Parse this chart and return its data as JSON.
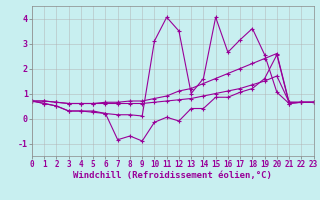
{
  "xlabel": "Windchill (Refroidissement éolien,°C)",
  "background_color": "#c8eff0",
  "line_color": "#990099",
  "xlim": [
    0,
    23
  ],
  "ylim": [
    -1.5,
    4.5
  ],
  "yticks": [
    -1,
    0,
    1,
    2,
    3,
    4
  ],
  "xticks": [
    0,
    1,
    2,
    3,
    4,
    5,
    6,
    7,
    8,
    9,
    10,
    11,
    12,
    13,
    14,
    15,
    16,
    17,
    18,
    19,
    20,
    21,
    22,
    23
  ],
  "lines": [
    {
      "x": [
        0,
        1,
        2,
        3,
        4,
        5,
        6,
        7,
        8,
        9,
        10,
        11,
        12,
        13,
        14,
        15,
        16,
        17,
        18,
        19,
        20,
        21,
        22,
        23
      ],
      "y": [
        0.7,
        0.6,
        0.5,
        0.3,
        0.3,
        0.3,
        0.2,
        0.15,
        0.15,
        0.1,
        3.1,
        4.05,
        3.5,
        1.0,
        1.6,
        4.05,
        2.65,
        3.15,
        3.6,
        2.55,
        1.05,
        0.6,
        0.65,
        0.65
      ]
    },
    {
      "x": [
        0,
        1,
        2,
        3,
        4,
        5,
        6,
        7,
        8,
        9,
        10,
        11,
        12,
        13,
        14,
        15,
        16,
        17,
        18,
        19,
        20,
        21,
        22,
        23
      ],
      "y": [
        0.7,
        0.7,
        0.65,
        0.6,
        0.6,
        0.6,
        0.65,
        0.65,
        0.7,
        0.7,
        0.8,
        0.9,
        1.1,
        1.2,
        1.4,
        1.6,
        1.8,
        2.0,
        2.2,
        2.4,
        2.6,
        0.65,
        0.65,
        0.65
      ]
    },
    {
      "x": [
        0,
        1,
        2,
        3,
        4,
        5,
        6,
        7,
        8,
        9,
        10,
        11,
        12,
        13,
        14,
        15,
        16,
        17,
        18,
        19,
        20,
        21,
        22,
        23
      ],
      "y": [
        0.7,
        0.7,
        0.65,
        0.6,
        0.6,
        0.6,
        0.6,
        0.6,
        0.6,
        0.6,
        0.65,
        0.7,
        0.75,
        0.8,
        0.9,
        1.0,
        1.1,
        1.2,
        1.35,
        1.5,
        1.7,
        0.65,
        0.65,
        0.65
      ]
    },
    {
      "x": [
        0,
        1,
        2,
        3,
        4,
        5,
        6,
        7,
        8,
        9,
        10,
        11,
        12,
        13,
        14,
        15,
        16,
        17,
        18,
        19,
        20,
        21,
        22,
        23
      ],
      "y": [
        0.7,
        0.6,
        0.5,
        0.3,
        0.3,
        0.25,
        0.2,
        -0.85,
        -0.7,
        -0.9,
        -0.15,
        0.05,
        -0.1,
        0.4,
        0.4,
        0.85,
        0.85,
        1.05,
        1.2,
        1.6,
        2.55,
        0.6,
        0.65,
        0.65
      ]
    }
  ],
  "grid_color": "#b0b0b0",
  "tick_fontsize": 5.5,
  "xlabel_fontsize": 6.5
}
